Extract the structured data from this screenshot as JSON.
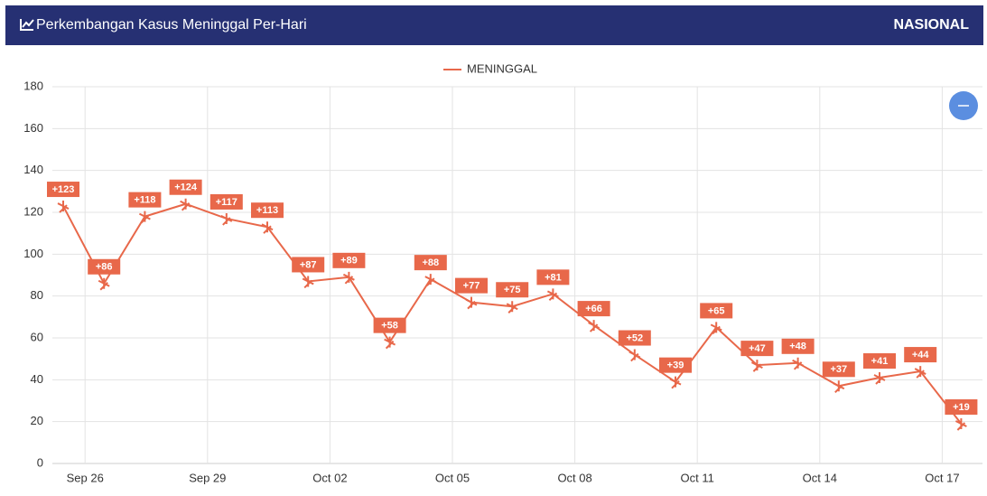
{
  "header": {
    "title": "Perkembangan Kasus Meninggal Per-Hari",
    "region": "NASIONAL"
  },
  "chart_data": {
    "type": "line",
    "categories": [
      null,
      "Sep 26",
      null,
      null,
      "Sep 29",
      null,
      null,
      "Oct 02",
      null,
      null,
      "Oct 05",
      null,
      null,
      "Oct 08",
      null,
      null,
      "Oct 11",
      null,
      null,
      "Oct 14",
      null,
      null,
      "Oct 17"
    ],
    "series": [
      {
        "name": "MENINGGAL",
        "color": "#e8684a",
        "values": [
          123,
          86,
          118,
          124,
          117,
          113,
          87,
          89,
          58,
          88,
          77,
          75,
          81,
          66,
          52,
          39,
          65,
          47,
          48,
          37,
          41,
          44,
          19
        ],
        "value_labels": [
          "+123",
          "+86",
          "+118",
          "+124",
          "+117",
          "+113",
          "+87",
          "+89",
          "+58",
          "+88",
          "+77",
          "+75",
          "+81",
          "+66",
          "+52",
          "+39",
          "+65",
          "+47",
          "+48",
          "+37",
          "+41",
          "+44",
          "+19"
        ]
      }
    ],
    "ylim": [
      0,
      180
    ],
    "yticks": [
      0,
      20,
      40,
      60,
      80,
      100,
      120,
      140,
      160,
      180
    ],
    "grid": true
  }
}
